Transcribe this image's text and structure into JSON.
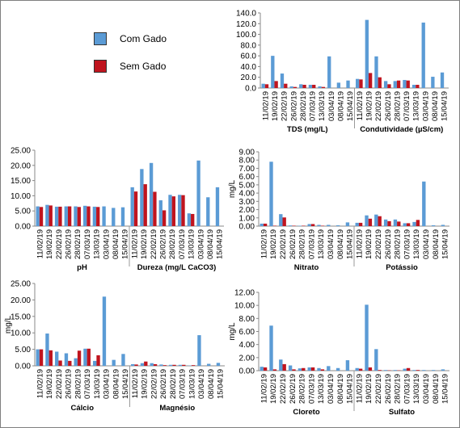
{
  "legend": {
    "com_gado": {
      "label": "Com Gado",
      "color": "#5b9bd5"
    },
    "sem_gado": {
      "label": "Sem Gado",
      "color": "#c0141e"
    }
  },
  "chart_data": [
    {
      "type": "bar",
      "ylim": [
        0,
        140
      ],
      "yticks": [
        "0.0",
        "20.0",
        "40.0",
        "60.0",
        "80.0",
        "100.0",
        "120.0",
        "140.0"
      ],
      "ylabel": "",
      "dates": [
        "11/02/19",
        "19/02/19",
        "22/02/19",
        "26/02/19",
        "28/02/19",
        "07/03/19",
        "13/03/19",
        "03/04/19",
        "08/04/19",
        "15/04/19"
      ],
      "groups": [
        {
          "label": "TDS (mg/L)",
          "series": [
            {
              "name": "Com Gado",
              "values": [
                8,
                60,
                27,
                3,
                7,
                6,
                3,
                59,
                10,
                14
              ]
            },
            {
              "name": "Sem Gado",
              "values": [
                7,
                13,
                8,
                2,
                6,
                6,
                2,
                null,
                null,
                null
              ]
            }
          ]
        },
        {
          "label": "Condutividade (µS/cm)",
          "series": [
            {
              "name": "Com Gado",
              "values": [
                17,
                127,
                59,
                13,
                13,
                15,
                6,
                122,
                21,
                29
              ]
            },
            {
              "name": "Sem Gado",
              "values": [
                16,
                28,
                20,
                7,
                14,
                14,
                6,
                null,
                null,
                null
              ]
            }
          ]
        }
      ]
    },
    {
      "type": "bar",
      "ylim": [
        0,
        25
      ],
      "yticks": [
        "0.00",
        "5.00",
        "10.00",
        "15.00",
        "20.00",
        "25.00"
      ],
      "ylabel": "",
      "dates": [
        "11/02/19",
        "19/02/19",
        "22/02/19",
        "26/02/19",
        "28/02/19",
        "07/03/19",
        "13/03/19",
        "03/04/19",
        "08/04/19",
        "15/04/19"
      ],
      "groups": [
        {
          "label": "pH",
          "series": [
            {
              "name": "Com Gado",
              "values": [
                6.5,
                7.0,
                6.4,
                6.5,
                6.5,
                6.7,
                6.4,
                6.5,
                6.0,
                6.2
              ]
            },
            {
              "name": "Sem Gado",
              "values": [
                6.3,
                6.8,
                6.4,
                6.5,
                6.3,
                6.5,
                6.3,
                null,
                null,
                null
              ]
            }
          ]
        },
        {
          "label": "Dureza (mg/L CaCO3)",
          "series": [
            {
              "name": "Com Gado",
              "values": [
                12.8,
                18.8,
                20.8,
                8.5,
                10.3,
                10.3,
                4.2,
                21.6,
                9.5,
                12.8
              ]
            },
            {
              "name": "Sem Gado",
              "values": [
                11.4,
                13.8,
                11.3,
                5.2,
                9.8,
                10.2,
                4.0,
                null,
                null,
                null
              ]
            }
          ]
        }
      ]
    },
    {
      "type": "bar",
      "ylim": [
        0,
        9
      ],
      "yticks": [
        "0.00",
        "1.00",
        "2.00",
        "3.00",
        "4.00",
        "5.00",
        "6.00",
        "7.00",
        "8.00",
        "9.00"
      ],
      "ylabel": "mg/L",
      "dates": [
        "11/02/19",
        "19/02/19",
        "22/02/19",
        "26/02/19",
        "28/02/19",
        "07/03/19",
        "13/03/19",
        "03/04/19",
        "08/04/19",
        "15/04/19"
      ],
      "groups": [
        {
          "label": "Nitrato",
          "series": [
            {
              "name": "Com Gado",
              "values": [
                0.3,
                7.8,
                1.45,
                0.08,
                0.05,
                0.25,
                0.15,
                0.15,
                0.1,
                0.45
              ]
            },
            {
              "name": "Sem Gado",
              "values": [
                0.3,
                0.05,
                1.05,
                0.05,
                0.05,
                0.25,
                0.05,
                null,
                null,
                null
              ]
            }
          ]
        },
        {
          "label": "Potássio",
          "series": [
            {
              "name": "Com Gado",
              "values": [
                0.4,
                1.3,
                1.4,
                0.8,
                0.8,
                0.35,
                0.5,
                5.4,
                0.1,
                0.15
              ]
            },
            {
              "name": "Sem Gado",
              "values": [
                0.4,
                0.9,
                1.2,
                0.6,
                0.55,
                0.35,
                0.75,
                null,
                null,
                null
              ]
            }
          ]
        }
      ]
    },
    {
      "type": "bar",
      "ylim": [
        0,
        25
      ],
      "yticks": [
        "0.00",
        "5.00",
        "10.00",
        "15.00",
        "20.00",
        "25.00"
      ],
      "ylabel": "mg/L",
      "dates": [
        "11/02/19",
        "19/02/19",
        "22/02/19",
        "26/02/19",
        "28/02/19",
        "07/03/19",
        "13/03/19",
        "03/04/19",
        "08/04/19",
        "15/04/19"
      ],
      "groups": [
        {
          "label": "Cálcio",
          "series": [
            {
              "name": "Com Gado",
              "values": [
                5.0,
                9.8,
                4.3,
                3.8,
                2.3,
                5.2,
                1.5,
                21.0,
                1.8,
                3.6
              ]
            },
            {
              "name": "Sem Gado",
              "values": [
                5.0,
                4.7,
                1.6,
                1.5,
                4.6,
                5.2,
                3.2,
                null,
                null,
                null
              ]
            }
          ]
        },
        {
          "label": "Magnésio",
          "series": [
            {
              "name": "Com Gado",
              "values": [
                0.5,
                0.8,
                0.8,
                0.4,
                0.3,
                0.3,
                0.1,
                9.3,
                0.6,
                0.9
              ]
            },
            {
              "name": "Sem Gado",
              "values": [
                0.4,
                1.3,
                0.5,
                0.2,
                0.3,
                0.3,
                0.2,
                null,
                null,
                null
              ]
            }
          ]
        }
      ]
    },
    {
      "type": "bar",
      "ylim": [
        0,
        12
      ],
      "yticks": [
        "0.00",
        "2.00",
        "4.00",
        "6.00",
        "8.00",
        "10.00",
        "12.00"
      ],
      "ylabel": "mg/L",
      "dates": [
        "11/02/19",
        "19/02/19",
        "22/02/19",
        "26/02/19",
        "28/02/19",
        "07/03/19",
        "13/03/19",
        "03/04/19",
        "08/04/19",
        "15/04/19"
      ],
      "groups": [
        {
          "label": "Cloreto",
          "series": [
            {
              "name": "Com Gado",
              "values": [
                0.6,
                6.9,
                1.7,
                0.8,
                0.35,
                0.5,
                0.4,
                0.7,
                0.4,
                1.6
              ]
            },
            {
              "name": "Sem Gado",
              "values": [
                0.5,
                0.2,
                1.0,
                0.2,
                0.4,
                0.5,
                0.2,
                null,
                null,
                null
              ]
            }
          ]
        },
        {
          "label": "Sulfato",
          "series": [
            {
              "name": "Com Gado",
              "values": [
                0.4,
                10.1,
                3.3,
                0.1,
                0.1,
                0.3,
                0.1,
                0.1,
                0.1,
                0.2
              ]
            },
            {
              "name": "Sem Gado",
              "values": [
                0.3,
                0.5,
                0.1,
                0.05,
                0.05,
                0.4,
                0.1,
                null,
                null,
                null
              ]
            }
          ]
        }
      ]
    }
  ]
}
